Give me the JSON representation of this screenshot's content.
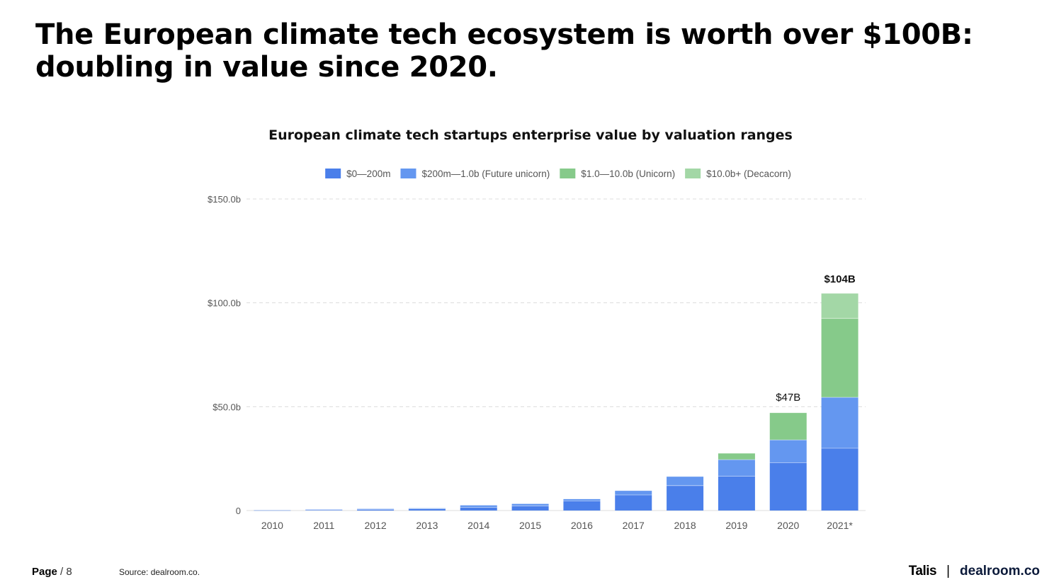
{
  "headline": {
    "line1": "The European climate tech ecosystem is worth over $100B:",
    "line2": "doubling in value since 2020."
  },
  "chart_data": {
    "type": "bar",
    "stacked": true,
    "title": "European climate tech startups enterprise value by valuation ranges",
    "xlabel": "",
    "ylabel": "",
    "ylim": [
      0,
      150
    ],
    "yticks": [
      {
        "value": 0,
        "label": "0"
      },
      {
        "value": 50,
        "label": "$50.0b"
      },
      {
        "value": 100,
        "label": "$100.0b"
      },
      {
        "value": 150,
        "label": "$150.0b"
      }
    ],
    "grid": true,
    "legend_position": "top",
    "categories": [
      "2010",
      "2011",
      "2012",
      "2013",
      "2014",
      "2015",
      "2016",
      "2017",
      "2018",
      "2019",
      "2020",
      "2021*"
    ],
    "series": [
      {
        "name": "$0—200m",
        "color": "#4a7fea",
        "values": [
          0.1,
          0.3,
          0.5,
          0.8,
          1.5,
          2.2,
          4.6,
          7.5,
          12,
          16.5,
          23,
          30
        ]
      },
      {
        "name": "$200m—1.0b (Future unicorn)",
        "color": "#6497f0",
        "values": [
          0,
          0.2,
          0.3,
          0.3,
          1,
          1,
          0.9,
          2,
          4.3,
          8,
          11,
          24.5
        ]
      },
      {
        "name": "$1.0—10.0b (Unicorn)",
        "color": "#86ca8a",
        "values": [
          0,
          0,
          0,
          0,
          0,
          0,
          0,
          0,
          0,
          3,
          13,
          38
        ]
      },
      {
        "name": "$10.0b+ (Decacorn)",
        "color": "#a3d7a6",
        "values": [
          0,
          0,
          0,
          0,
          0,
          0,
          0,
          0,
          0,
          0,
          0,
          12
        ]
      }
    ],
    "annotations": [
      {
        "category": "2020",
        "text": "$47B",
        "bold": false,
        "value": 47
      },
      {
        "category": "2021*",
        "text": "$104B",
        "bold": true,
        "value": 104
      }
    ]
  },
  "footer": {
    "page_label": "Page",
    "page_number": "/ 8",
    "source": "Source: dealroom.co.",
    "brand_talis": "Talis",
    "brand_separator": "|",
    "brand_dealroom": "dealroom.co"
  }
}
